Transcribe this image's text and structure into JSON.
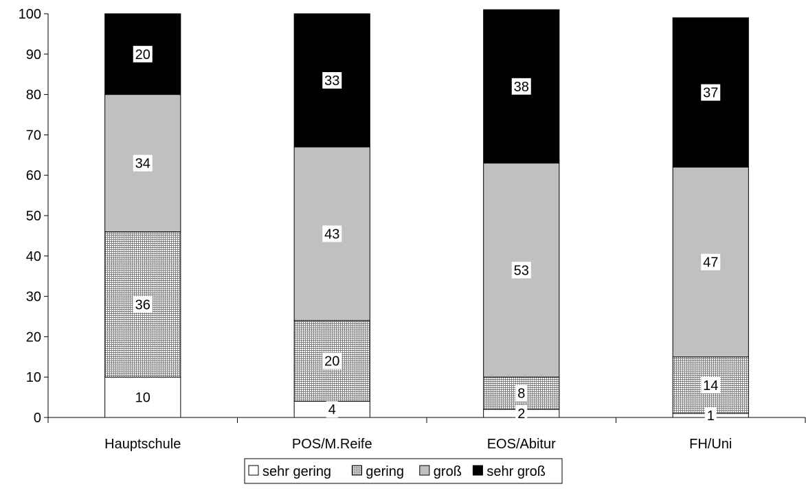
{
  "chart_data": {
    "type": "bar",
    "stacked": true,
    "categories": [
      "Hauptschule",
      "POS/M.Reife",
      "EOS/Abitur",
      "FH/Uni"
    ],
    "series": [
      {
        "name": "sehr gering",
        "values": [
          10,
          4,
          2,
          1
        ],
        "labels": [
          "10",
          "4",
          "2",
          "1"
        ],
        "color": "#ffffff",
        "pattern": "none"
      },
      {
        "name": "gering",
        "values": [
          36,
          20,
          8,
          14
        ],
        "labels": [
          "36",
          "20",
          "8",
          "14"
        ],
        "color": "#ffffff",
        "pattern": "crosshatch"
      },
      {
        "name": "groß",
        "values": [
          34,
          43,
          53,
          47
        ],
        "labels": [
          "34",
          "43",
          "53",
          "47"
        ],
        "color": "#c0c0c0",
        "pattern": "none"
      },
      {
        "name": "sehr groß",
        "values": [
          20,
          33,
          38,
          37
        ],
        "labels": [
          "20",
          "33",
          "38",
          "37"
        ],
        "color": "#000000",
        "pattern": "none"
      }
    ],
    "ylim": [
      0,
      100
    ],
    "yticks": [
      "0",
      "10",
      "20",
      "30",
      "40",
      "50",
      "60",
      "70",
      "80",
      "90",
      "100"
    ],
    "title": "",
    "xlabel": "",
    "ylabel": "",
    "grid": false,
    "legend_position": "bottom"
  }
}
